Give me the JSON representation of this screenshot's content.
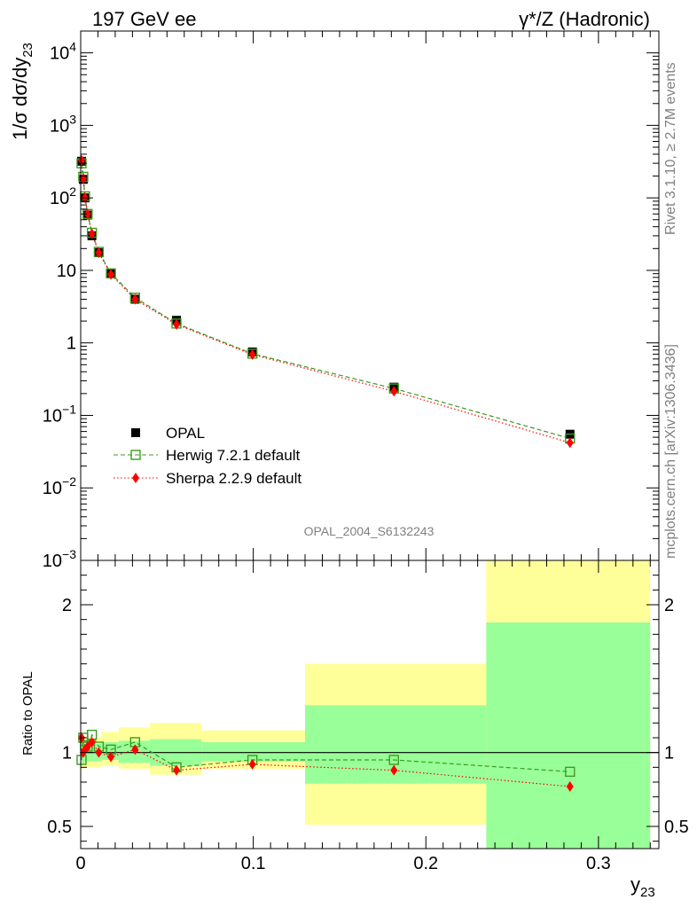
{
  "header": {
    "left": "197 GeV ee",
    "right": "γ*/Z (Hadronic)"
  },
  "side_text": {
    "rivet": "Rivet 3.1.10, ≥ 2.7M events",
    "mcplots": "mcplots.cern.ch [arXiv:1306.3436]"
  },
  "watermark": "OPAL_2004_S6132243",
  "colors": {
    "data": "#000000",
    "herwig": "#3c9b1f",
    "sherpa": "#ff0000",
    "band_inner": "#99ff99",
    "band_outer": "#ffff99"
  },
  "chart_data": [
    {
      "type": "scatter",
      "panel": "main",
      "ylabel": "1/σ dσ/dy23",
      "ylabel_parts": {
        "main": "1/σ dσ/dy",
        "sub": "23"
      },
      "yscale": "log",
      "xlim": [
        0,
        0.335
      ],
      "ylim": [
        0.001,
        20000
      ],
      "y_ticks": [
        {
          "value": 0.001,
          "base": "10",
          "exp": "−3"
        },
        {
          "value": 0.01,
          "base": "10",
          "exp": "−2"
        },
        {
          "value": 0.1,
          "base": "10",
          "exp": "−1"
        },
        {
          "value": 1,
          "base": "1",
          "exp": ""
        },
        {
          "value": 10,
          "base": "10",
          "exp": ""
        },
        {
          "value": 100,
          "base": "10",
          "exp": "2"
        },
        {
          "value": 1000,
          "base": "10",
          "exp": "3"
        },
        {
          "value": 10000,
          "base": "10",
          "exp": "4"
        }
      ],
      "legend_position": "lower-left",
      "series": [
        {
          "name": "OPAL",
          "style": "filled-square",
          "x": [
            0.0005,
            0.0015,
            0.0025,
            0.004,
            0.0065,
            0.0105,
            0.0175,
            0.0315,
            0.0555,
            0.0995,
            0.1815,
            0.2835
          ],
          "y": [
            320,
            180,
            100,
            58,
            30,
            17.5,
            9,
            4,
            2.05,
            0.75,
            0.245,
            0.055
          ]
        },
        {
          "name": "Herwig 7.2.1 default",
          "style": "open-square-dashed",
          "x": [
            0.0005,
            0.0015,
            0.0025,
            0.004,
            0.0065,
            0.0105,
            0.0175,
            0.0315,
            0.0555,
            0.0995,
            0.1815,
            0.2835
          ],
          "y": [
            300,
            195,
            105,
            60,
            33,
            18,
            9.1,
            4.2,
            1.85,
            0.71,
            0.235,
            0.048
          ]
        },
        {
          "name": "Sherpa 2.2.9 default",
          "style": "diamond-dotted",
          "x": [
            0.0005,
            0.0015,
            0.0025,
            0.004,
            0.0065,
            0.0105,
            0.0175,
            0.0315,
            0.0555,
            0.0995,
            0.1815,
            0.2835
          ],
          "y": [
            330,
            185,
            100,
            60,
            32,
            17.5,
            8.8,
            4.0,
            1.8,
            0.69,
            0.215,
            0.042
          ]
        }
      ]
    },
    {
      "type": "scatter",
      "panel": "ratio",
      "ylabel": "Ratio to OPAL",
      "xlabel": "y23",
      "xlabel_parts": {
        "main": "y",
        "sub": "23"
      },
      "xlim": [
        0,
        0.335
      ],
      "ylim": [
        0.35,
        2.3
      ],
      "x_ticks": [
        {
          "value": 0,
          "label": "0"
        },
        {
          "value": 0.1,
          "label": "0.1"
        },
        {
          "value": 0.2,
          "label": "0.2"
        },
        {
          "value": 0.3,
          "label": "0.3"
        }
      ],
      "y_ticks": [
        {
          "value": 0.5,
          "label": "0.5"
        },
        {
          "value": 1,
          "label": "1"
        },
        {
          "value": 2,
          "label": "2"
        }
      ],
      "bands": [
        {
          "x0": 0.0,
          "x1": 0.002,
          "inner": [
            0.92,
            1.08
          ],
          "outer": [
            0.89,
            1.11
          ]
        },
        {
          "x0": 0.002,
          "x1": 0.008,
          "inner": [
            0.94,
            1.06
          ],
          "outer": [
            0.9,
            1.1
          ]
        },
        {
          "x0": 0.008,
          "x1": 0.012,
          "inner": [
            0.94,
            1.06
          ],
          "outer": [
            0.9,
            1.1
          ]
        },
        {
          "x0": 0.012,
          "x1": 0.022,
          "inner": [
            0.95,
            1.07
          ],
          "outer": [
            0.91,
            1.14
          ]
        },
        {
          "x0": 0.022,
          "x1": 0.04,
          "inner": [
            0.93,
            1.08
          ],
          "outer": [
            0.89,
            1.17
          ]
        },
        {
          "x0": 0.04,
          "x1": 0.07,
          "inner": [
            0.91,
            1.09
          ],
          "outer": [
            0.85,
            1.2
          ]
        },
        {
          "x0": 0.07,
          "x1": 0.13,
          "inner": [
            0.94,
            1.07
          ],
          "outer": [
            0.89,
            1.15
          ]
        },
        {
          "x0": 0.13,
          "x1": 0.235,
          "inner": [
            0.79,
            1.32
          ],
          "outer": [
            0.51,
            1.6
          ]
        },
        {
          "x0": 0.235,
          "x1": 0.33,
          "inner": [
            0.35,
            1.88
          ],
          "outer": [
            0.35,
            2.3
          ]
        }
      ],
      "reference": 1,
      "series": [
        {
          "name": "Herwig 7.2.1 default",
          "x": [
            0.0005,
            0.0015,
            0.0025,
            0.004,
            0.0065,
            0.0105,
            0.0175,
            0.0315,
            0.0555,
            0.0995,
            0.1815,
            0.2835
          ],
          "y": [
            0.95,
            1.1,
            1.05,
            1.04,
            1.12,
            1.04,
            1.02,
            1.07,
            0.9,
            0.95,
            0.95,
            0.87
          ]
        },
        {
          "name": "Sherpa 2.2.9 default",
          "x": [
            0.0005,
            0.0015,
            0.0025,
            0.004,
            0.0065,
            0.0105,
            0.0175,
            0.0315,
            0.0555,
            0.0995,
            0.1815,
            0.2835
          ],
          "y": [
            1.1,
            1.0,
            1.02,
            1.04,
            1.07,
            1.0,
            0.97,
            1.02,
            0.88,
            0.92,
            0.88,
            0.77
          ]
        }
      ]
    }
  ]
}
